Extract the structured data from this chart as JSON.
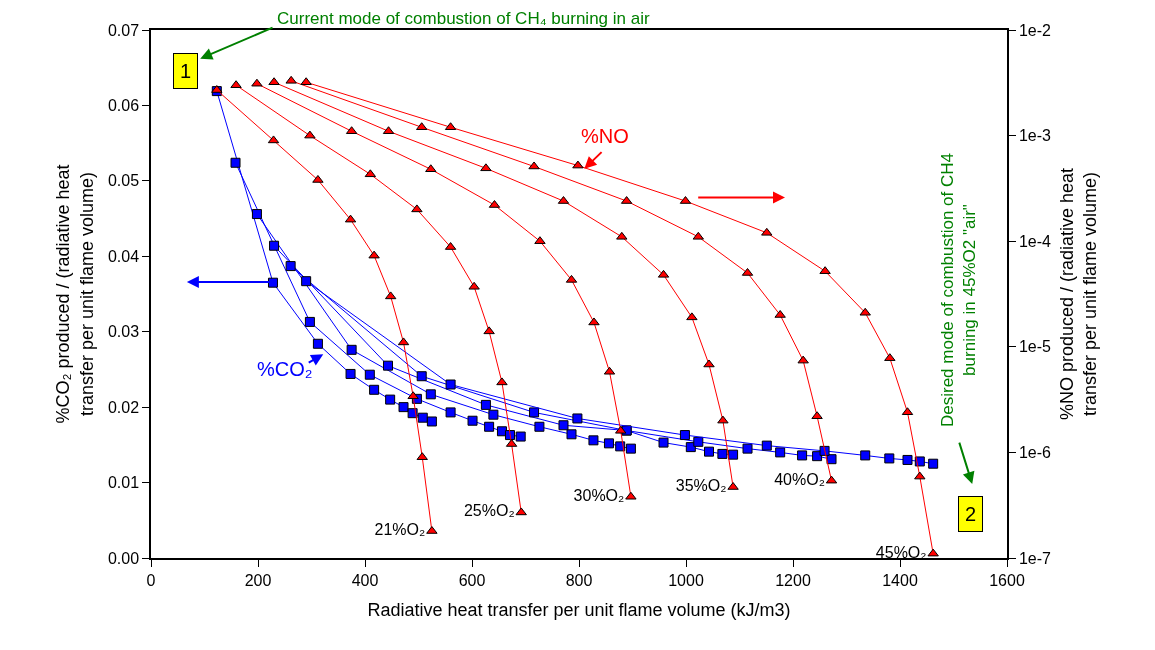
{
  "chart_data": {
    "type": "line",
    "xlabel": "Radiative heat transfer per unit flame volume (kJ/m3)",
    "ylabel": "%CO₂ produced / (radiative heat transfer per unit flame volume)",
    "y2label": "%NO produced / (radiative heat transfer per unit flame volume)",
    "xlim": [
      0,
      1600
    ],
    "xticks": [
      0,
      200,
      400,
      600,
      800,
      1000,
      1200,
      1400,
      1600
    ],
    "ylim": [
      0,
      0.07
    ],
    "yticks": [
      {
        "value": 0,
        "label": "0.00"
      },
      {
        "value": 0.01,
        "label": "0.01"
      },
      {
        "value": 0.02,
        "label": "0.02"
      },
      {
        "value": 0.03,
        "label": "0.03"
      },
      {
        "value": 0.04,
        "label": "0.04"
      },
      {
        "value": 0.05,
        "label": "0.05"
      },
      {
        "value": 0.06,
        "label": "0.06"
      },
      {
        "value": 0.07,
        "label": "0.07"
      }
    ],
    "y2lim": [
      1e-07,
      0.01
    ],
    "y2ticks": [
      {
        "value": 1e-07,
        "label": "1e-7"
      },
      {
        "value": 1e-06,
        "label": "1e-6"
      },
      {
        "value": 1e-05,
        "label": "1e-5"
      },
      {
        "value": 0.0001,
        "label": "1e-4"
      },
      {
        "value": 0.001,
        "label": "1e-3"
      },
      {
        "value": 0.01,
        "label": "1e-2"
      }
    ],
    "log": "y2",
    "series": [
      {
        "name": "21%O₂",
        "color": "#ff0000",
        "axis": "y2",
        "marker": "triangle",
        "x": [
          123,
          229,
          312,
          373,
          417,
          448,
          472,
          490,
          507,
          525
        ],
        "values": [
          0.0027,
          0.0009,
          0.00038,
          0.00016,
          7.3e-05,
          3e-05,
          1.1e-05,
          3.4e-06,
          9e-07,
          1.8e-07
        ]
      },
      {
        "name": "25%O₂",
        "color": "#ff0000",
        "axis": "y2",
        "marker": "triangle",
        "x": [
          159,
          297,
          410,
          497,
          560,
          604,
          632,
          656,
          674,
          692
        ],
        "values": [
          0.003,
          0.001,
          0.00043,
          0.0002,
          8.8e-05,
          3.7e-05,
          1.4e-05,
          4.6e-06,
          1.2e-06,
          2.7e-07
        ]
      },
      {
        "name": "30%O₂",
        "color": "#ff0000",
        "axis": "y2",
        "marker": "triangle",
        "x": [
          198,
          375,
          523,
          642,
          727,
          786,
          828,
          857,
          878,
          897
        ],
        "values": [
          0.0031,
          0.0011,
          0.00048,
          0.00022,
          0.0001,
          4.3e-05,
          1.7e-05,
          5.8e-06,
          1.6e-06,
          3.8e-07
        ]
      },
      {
        "name": "35%O₂",
        "color": "#ff0000",
        "axis": "y2",
        "marker": "triangle",
        "x": [
          230,
          444,
          626,
          771,
          880,
          958,
          1011,
          1043,
          1069,
          1088
        ],
        "values": [
          0.0032,
          0.0011,
          0.00049,
          0.00024,
          0.00011,
          4.8e-05,
          1.9e-05,
          6.8e-06,
          2e-06,
          4.7e-07
        ]
      },
      {
        "name": "40%O₂",
        "color": "#ff0000",
        "axis": "y2",
        "marker": "triangle",
        "x": [
          262,
          506,
          716,
          889,
          1023,
          1115,
          1176,
          1219,
          1245,
          1272
        ],
        "values": [
          0.0033,
          0.0012,
          0.00051,
          0.00024,
          0.00011,
          5e-05,
          2e-05,
          7.4e-06,
          2.2e-06,
          5.4e-07
        ]
      },
      {
        "name": "45%O₂",
        "color": "#ff0000",
        "axis": "y2",
        "marker": "triangle",
        "x": [
          290,
          560,
          798,
          999,
          1151,
          1260,
          1335,
          1381,
          1414,
          1437,
          1462
        ],
        "values": [
          0.0032,
          0.0012,
          0.00052,
          0.00024,
          0.00012,
          5.2e-05,
          2.1e-05,
          7.8e-06,
          2.4e-06,
          5.9e-07,
          1.1e-07
        ]
      },
      {
        "color": "#0000ff",
        "marker": "square",
        "x": [
          123,
          228,
          312,
          373,
          417,
          447,
          472,
          489,
          508,
          525
        ],
        "values": [
          0.0619,
          0.0365,
          0.0284,
          0.0244,
          0.0223,
          0.021,
          0.02,
          0.0192,
          0.0186,
          0.0181
        ]
      },
      {
        "color": "#0000ff",
        "marker": "square",
        "x": [
          158,
          297,
          409,
          497,
          560,
          601,
          632,
          656,
          671,
          691
        ],
        "values": [
          0.0524,
          0.0313,
          0.0243,
          0.0211,
          0.0193,
          0.0182,
          0.0174,
          0.0168,
          0.0163,
          0.0161
        ]
      },
      {
        "color": "#0000ff",
        "marker": "square",
        "x": [
          198,
          375,
          523,
          640,
          726,
          786,
          827,
          856,
          877,
          897
        ],
        "values": [
          0.0456,
          0.0276,
          0.0217,
          0.019,
          0.0174,
          0.0164,
          0.0156,
          0.0152,
          0.0148,
          0.0145
        ]
      },
      {
        "color": "#0000ff",
        "marker": "square",
        "x": [
          230,
          443,
          626,
          771,
          889,
          958,
          1009,
          1043,
          1068,
          1088
        ],
        "values": [
          0.0414,
          0.0255,
          0.0203,
          0.0176,
          0.0169,
          0.0153,
          0.0147,
          0.0141,
          0.0138,
          0.0137
        ]
      },
      {
        "color": "#0000ff",
        "marker": "square",
        "x": [
          261,
          506,
          716,
          889,
          1023,
          1115,
          1176,
          1217,
          1245,
          1272
        ],
        "values": [
          0.0387,
          0.0241,
          0.0193,
          0.0169,
          0.0154,
          0.0145,
          0.014,
          0.0136,
          0.0135,
          0.0131
        ]
      },
      {
        "color": "#0000ff",
        "marker": "square",
        "x": [
          290,
          560,
          797,
          998,
          1151,
          1259,
          1335,
          1380,
          1414,
          1437,
          1462
        ],
        "values": [
          0.0367,
          0.023,
          0.0185,
          0.0163,
          0.0149,
          0.0142,
          0.0136,
          0.0132,
          0.013,
          0.0128,
          0.0125
        ]
      }
    ],
    "annotations": [
      "Current mode of combustion of CH₄ burning in air",
      "1",
      "2",
      "%NO",
      "%CO₂",
      "Desired mode of combustion of CH4 burning in 45%O2 \"air\""
    ]
  }
}
